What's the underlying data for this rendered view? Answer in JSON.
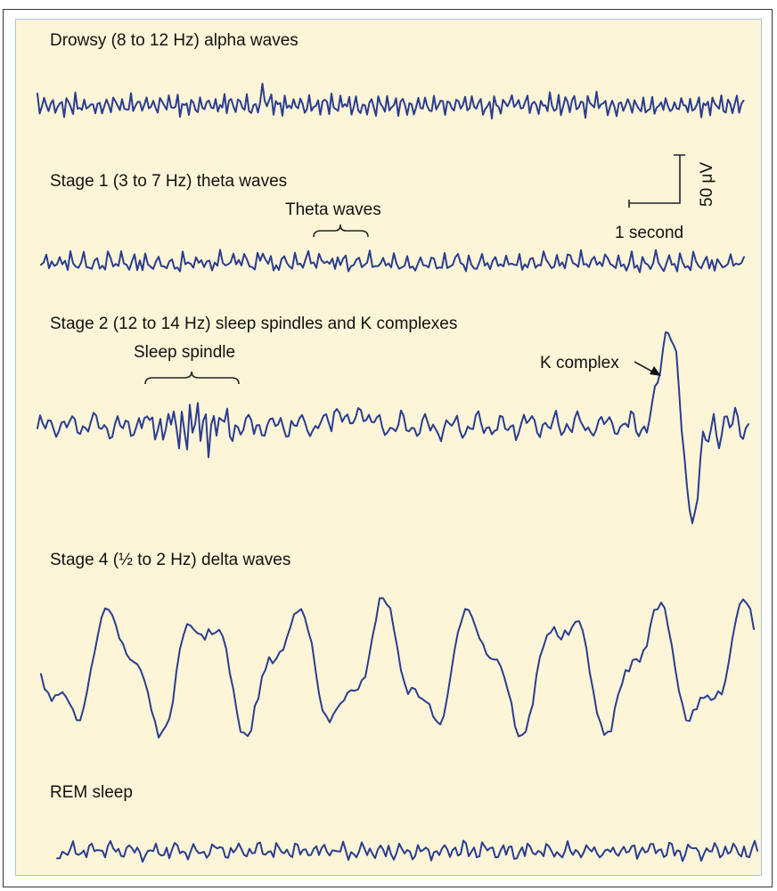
{
  "figure": {
    "traces": [
      {
        "id": "drowsy",
        "label": "Drowsy (8 to 12 Hz) alpha waves"
      },
      {
        "id": "stage1",
        "label": "Stage 1 (3 to 7 Hz) theta waves"
      },
      {
        "id": "stage2",
        "label": "Stage 2 (12 to 14 Hz) sleep spindles and K complexes"
      },
      {
        "id": "stage4",
        "label": "Stage 4 (½ to 2 Hz) delta waves"
      },
      {
        "id": "rem",
        "label": "REM sleep"
      }
    ],
    "annotations": {
      "theta": "Theta waves",
      "spindle": "Sleep spindle",
      "kcomplex": "K complex"
    },
    "scale_bar": {
      "amplitude": "50 μV",
      "time": "1 second"
    },
    "colors": {
      "trace": "#2a3d8f",
      "background": "#fdf5d8",
      "panel_border": "#a9c4dc"
    }
  }
}
